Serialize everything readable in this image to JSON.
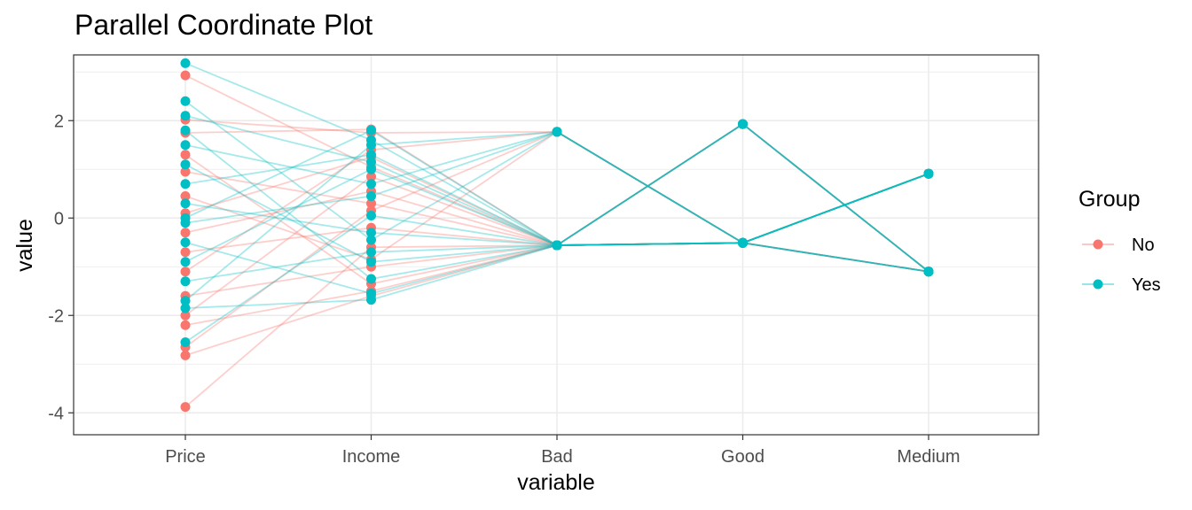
{
  "chart_data": {
    "type": "line",
    "title": "Parallel Coordinate Plot",
    "xlabel": "variable",
    "ylabel": "value",
    "categories": [
      "Price",
      "Income",
      "Bad",
      "Good",
      "Medium"
    ],
    "ylim": [
      -4.45,
      3.35
    ],
    "yticks": [
      -4,
      -2,
      0,
      2
    ],
    "ytick_labels": [
      "-4",
      "-2",
      "0",
      "2"
    ],
    "grid": true,
    "legend": {
      "title": "Group",
      "placement": "right",
      "entries": [
        {
          "label": "No",
          "color": "#F8766D"
        },
        {
          "label": "Yes",
          "color": "#00BFC4"
        }
      ]
    },
    "series": [
      {
        "group": "No",
        "values": [
          2.93,
          1.05,
          -0.56,
          -0.51,
          0.91
        ]
      },
      {
        "group": "No",
        "values": [
          2.02,
          1.75,
          1.77,
          -0.51,
          -1.1
        ]
      },
      {
        "group": "No",
        "values": [
          1.3,
          -1.35,
          -0.56,
          1.93,
          -1.1
        ]
      },
      {
        "group": "No",
        "values": [
          0.95,
          0.3,
          -0.56,
          -0.51,
          0.91
        ]
      },
      {
        "group": "No",
        "values": [
          0.45,
          -0.85,
          1.77,
          -0.51,
          -1.1
        ]
      },
      {
        "group": "No",
        "values": [
          0.1,
          1.25,
          -0.56,
          -0.51,
          0.91
        ]
      },
      {
        "group": "No",
        "values": [
          -0.3,
          0.55,
          -0.56,
          1.93,
          -1.1
        ]
      },
      {
        "group": "No",
        "values": [
          -0.7,
          -0.2,
          -0.56,
          -0.51,
          0.91
        ]
      },
      {
        "group": "No",
        "values": [
          -1.1,
          1.4,
          1.77,
          -0.51,
          -1.1
        ]
      },
      {
        "group": "No",
        "values": [
          -1.6,
          -1.0,
          -0.56,
          -0.51,
          0.91
        ]
      },
      {
        "group": "No",
        "values": [
          -2.0,
          0.85,
          -0.56,
          1.93,
          -1.1
        ]
      },
      {
        "group": "No",
        "values": [
          -2.2,
          -1.5,
          -0.56,
          -0.51,
          0.91
        ]
      },
      {
        "group": "No",
        "values": [
          -2.65,
          0.15,
          1.77,
          -0.51,
          -1.1
        ]
      },
      {
        "group": "No",
        "values": [
          -2.82,
          -1.6,
          -0.56,
          -0.51,
          0.91
        ]
      },
      {
        "group": "No",
        "values": [
          -3.88,
          -0.6,
          -0.56,
          1.93,
          -1.1
        ]
      },
      {
        "group": "No",
        "values": [
          1.75,
          1.82,
          -0.56,
          -0.51,
          0.91
        ]
      },
      {
        "group": "Yes",
        "values": [
          3.18,
          1.6,
          -0.56,
          -0.51,
          0.91
        ]
      },
      {
        "group": "Yes",
        "values": [
          2.4,
          -0.45,
          1.77,
          -0.51,
          -1.1
        ]
      },
      {
        "group": "Yes",
        "values": [
          2.1,
          1.15,
          -0.56,
          1.93,
          -1.1
        ]
      },
      {
        "group": "Yes",
        "values": [
          1.8,
          -1.25,
          -0.56,
          -0.51,
          0.91
        ]
      },
      {
        "group": "Yes",
        "values": [
          1.5,
          0.7,
          1.77,
          -0.51,
          -1.1
        ]
      },
      {
        "group": "Yes",
        "values": [
          1.1,
          -0.9,
          -0.56,
          -0.51,
          0.91
        ]
      },
      {
        "group": "Yes",
        "values": [
          0.7,
          1.3,
          -0.56,
          1.93,
          -1.1
        ]
      },
      {
        "group": "Yes",
        "values": [
          0.3,
          -0.3,
          -0.56,
          -0.51,
          0.91
        ]
      },
      {
        "group": "Yes",
        "values": [
          -0.1,
          0.45,
          1.77,
          -0.51,
          -1.1
        ]
      },
      {
        "group": "Yes",
        "values": [
          -0.5,
          -1.55,
          -0.56,
          -0.51,
          0.91
        ]
      },
      {
        "group": "Yes",
        "values": [
          -0.9,
          1.0,
          -0.56,
          1.93,
          -1.1
        ]
      },
      {
        "group": "Yes",
        "values": [
          -1.3,
          -0.7,
          -0.56,
          -0.51,
          0.91
        ]
      },
      {
        "group": "Yes",
        "values": [
          -1.7,
          1.5,
          1.77,
          -0.51,
          -1.1
        ]
      },
      {
        "group": "Yes",
        "values": [
          -1.85,
          -1.68,
          -0.56,
          -0.51,
          0.91
        ]
      },
      {
        "group": "Yes",
        "values": [
          -2.55,
          0.05,
          -0.56,
          1.93,
          -1.1
        ]
      },
      {
        "group": "Yes",
        "values": [
          0.0,
          1.8,
          -0.56,
          -0.51,
          0.91
        ]
      }
    ]
  }
}
